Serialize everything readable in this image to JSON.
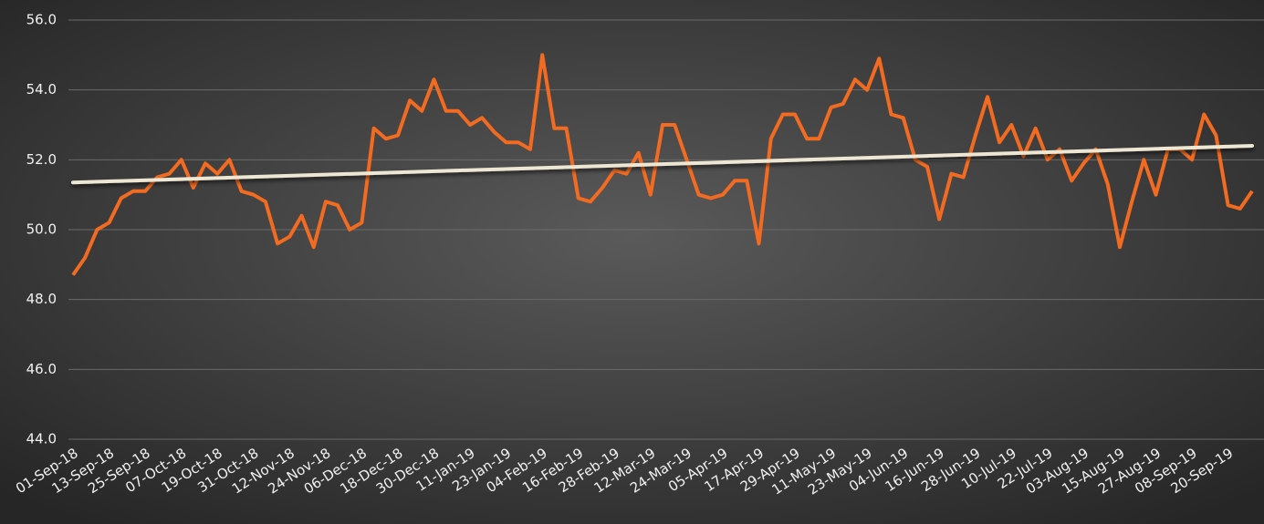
{
  "chart_data": {
    "type": "line",
    "categories": [
      "01-Sep-18",
      null,
      null,
      "13-Sep-18",
      null,
      null,
      "25-Sep-18",
      null,
      null,
      "07-Oct-18",
      null,
      null,
      "19-Oct-18",
      null,
      null,
      "31-Oct-18",
      null,
      null,
      "12-Nov-18",
      null,
      null,
      "24-Nov-18",
      null,
      null,
      "06-Dec-18",
      null,
      null,
      "18-Dec-18",
      null,
      null,
      "30-Dec-18",
      null,
      null,
      "11-Jan-19",
      null,
      null,
      "23-Jan-19",
      null,
      null,
      "04-Feb-19",
      null,
      null,
      "16-Feb-19",
      null,
      null,
      "28-Feb-19",
      null,
      null,
      "12-Mar-19",
      null,
      null,
      "24-Mar-19",
      null,
      null,
      "05-Apr-19",
      null,
      null,
      "17-Apr-19",
      null,
      null,
      "29-Apr-19",
      null,
      null,
      "11-May-19",
      null,
      null,
      "23-May-19",
      null,
      null,
      "04-Jun-19",
      null,
      null,
      "16-Jun-19",
      null,
      null,
      "28-Jun-19",
      null,
      null,
      "10-Jul-19",
      null,
      null,
      "22-Jul-19",
      null,
      null,
      "03-Aug-19",
      null,
      null,
      "15-Aug-19",
      null,
      null,
      "27-Aug-19",
      null,
      null,
      "08-Sep-19",
      null,
      null,
      "20-Sep-19",
      null,
      null
    ],
    "values": [
      48.7,
      49.2,
      50.0,
      50.2,
      50.9,
      51.1,
      51.1,
      51.5,
      51.6,
      52.0,
      51.2,
      51.9,
      51.6,
      52.0,
      51.1,
      51.0,
      50.8,
      49.6,
      49.8,
      50.4,
      49.5,
      50.8,
      50.7,
      50.0,
      50.2,
      52.9,
      52.6,
      52.7,
      53.7,
      53.4,
      54.3,
      53.4,
      53.4,
      53.0,
      53.2,
      52.8,
      52.5,
      52.5,
      52.3,
      55.0,
      52.9,
      52.9,
      50.9,
      50.8,
      51.2,
      51.7,
      51.6,
      52.2,
      51.0,
      53.0,
      53.0,
      52.0,
      51.0,
      50.9,
      51.0,
      51.4,
      51.4,
      49.6,
      52.6,
      53.3,
      53.3,
      52.6,
      52.6,
      53.5,
      53.6,
      54.3,
      54.0,
      54.9,
      53.3,
      53.2,
      52.0,
      51.8,
      50.3,
      51.6,
      51.5,
      52.7,
      53.8,
      52.5,
      53.0,
      52.1,
      52.9,
      52.0,
      52.3,
      51.4,
      51.9,
      52.3,
      51.3,
      49.5,
      50.8,
      52.0,
      51.0,
      52.3,
      52.3,
      52.0,
      53.3,
      52.7,
      50.7,
      50.6,
      51.1
    ],
    "color": "#f26b21",
    "trendline": {
      "start": 51.35,
      "end": 52.4,
      "color": "#ece6d2"
    },
    "ylim": [
      44,
      56
    ],
    "yticks": [
      {
        "value": 44,
        "label": "44.0"
      },
      {
        "value": 46,
        "label": "46.0"
      },
      {
        "value": 48,
        "label": "48.0"
      },
      {
        "value": 50,
        "label": "50.0"
      },
      {
        "value": 52,
        "label": "52.0"
      },
      {
        "value": 54,
        "label": "54.0"
      },
      {
        "value": 56,
        "label": "56.0"
      }
    ],
    "grid": true
  }
}
